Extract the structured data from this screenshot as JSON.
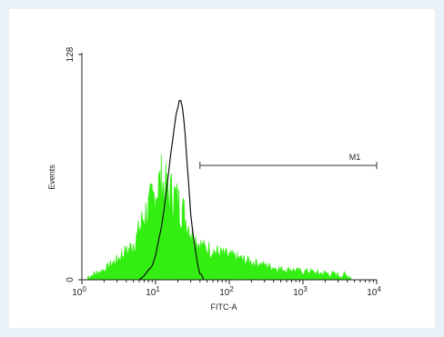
{
  "chart_data": {
    "type": "line",
    "title": "",
    "xlabel": "FITC-A",
    "ylabel": "Events",
    "x_scale": "log",
    "xlim": [
      1,
      10000
    ],
    "ylim": [
      0,
      128
    ],
    "x_ticks": [
      {
        "value": 1,
        "base": "10",
        "exp": "0"
      },
      {
        "value": 10,
        "base": "10",
        "exp": "1"
      },
      {
        "value": 100,
        "base": "10",
        "exp": "2"
      },
      {
        "value": 1000,
        "base": "10",
        "exp": "3"
      },
      {
        "value": 10000,
        "base": "10",
        "exp": "4"
      }
    ],
    "y_ticks": [
      {
        "value": 0,
        "label": "0"
      },
      {
        "value": 128,
        "label": "128"
      }
    ],
    "grid": false,
    "series": [
      {
        "color": "#33ee11",
        "style": "filled-noisy",
        "x": [
          1.2,
          1.6,
          2.0,
          2.5,
          3.0,
          3.5,
          4.0,
          4.5,
          5.0,
          5.5,
          6.0,
          6.5,
          7.0,
          8.0,
          9.0,
          10,
          11,
          12,
          13,
          14,
          15,
          17,
          19,
          21,
          23,
          25,
          28,
          30,
          33,
          36,
          40,
          45,
          50,
          60,
          70,
          80,
          100,
          130,
          160,
          200,
          260,
          330,
          420,
          540,
          700,
          900,
          1200,
          1600,
          2100,
          2800,
          3700,
          4500
        ],
        "y": [
          1,
          3,
          5,
          8,
          10,
          13,
          14,
          16,
          19,
          21,
          25,
          29,
          33,
          36,
          40,
          46,
          48,
          50,
          47,
          45,
          43,
          44,
          41,
          38,
          36,
          32,
          28,
          25,
          22,
          20,
          18,
          16,
          16,
          15,
          14,
          13,
          12,
          11,
          10,
          9,
          8,
          7,
          6,
          5,
          5,
          4,
          4,
          3,
          3,
          2,
          2,
          1
        ]
      },
      {
        "color": "#111111",
        "style": "line",
        "x": [
          6.0,
          7.0,
          8.0,
          9.0,
          10,
          11,
          12,
          13,
          14,
          15,
          16,
          17,
          18,
          19,
          20,
          21,
          22,
          23,
          24,
          25,
          26,
          27,
          28,
          29,
          30,
          32,
          34,
          36,
          38,
          40,
          42,
          45
        ],
        "y": [
          0,
          2,
          5,
          8,
          14,
          22,
          30,
          40,
          50,
          60,
          70,
          79,
          87,
          93,
          98,
          101,
          101,
          98,
          92,
          85,
          75,
          65,
          55,
          45,
          38,
          28,
          20,
          13,
          7,
          4,
          2,
          0
        ]
      }
    ],
    "gates": [
      {
        "label": "M1",
        "x_start": 40,
        "x_end": 10000,
        "y": 65
      }
    ]
  }
}
